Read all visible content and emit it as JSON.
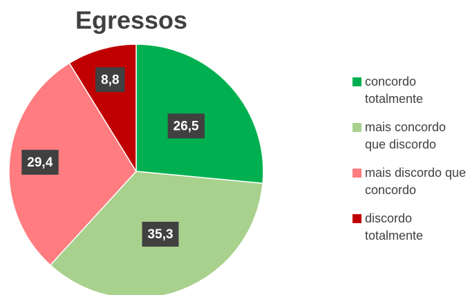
{
  "chart_data": {
    "type": "pie",
    "title": "Egressos",
    "categories": [
      "concordo totalmente",
      "mais concordo que discordo",
      "mais discordo que concordo",
      "discordo totalmente"
    ],
    "values": [
      26.5,
      35.3,
      29.4,
      8.8
    ],
    "value_labels": [
      "26,5",
      "35,3",
      "29,4",
      "8,8"
    ],
    "colors": [
      "#00b050",
      "#a9d18e",
      "#ff7c80",
      "#c00000"
    ]
  }
}
